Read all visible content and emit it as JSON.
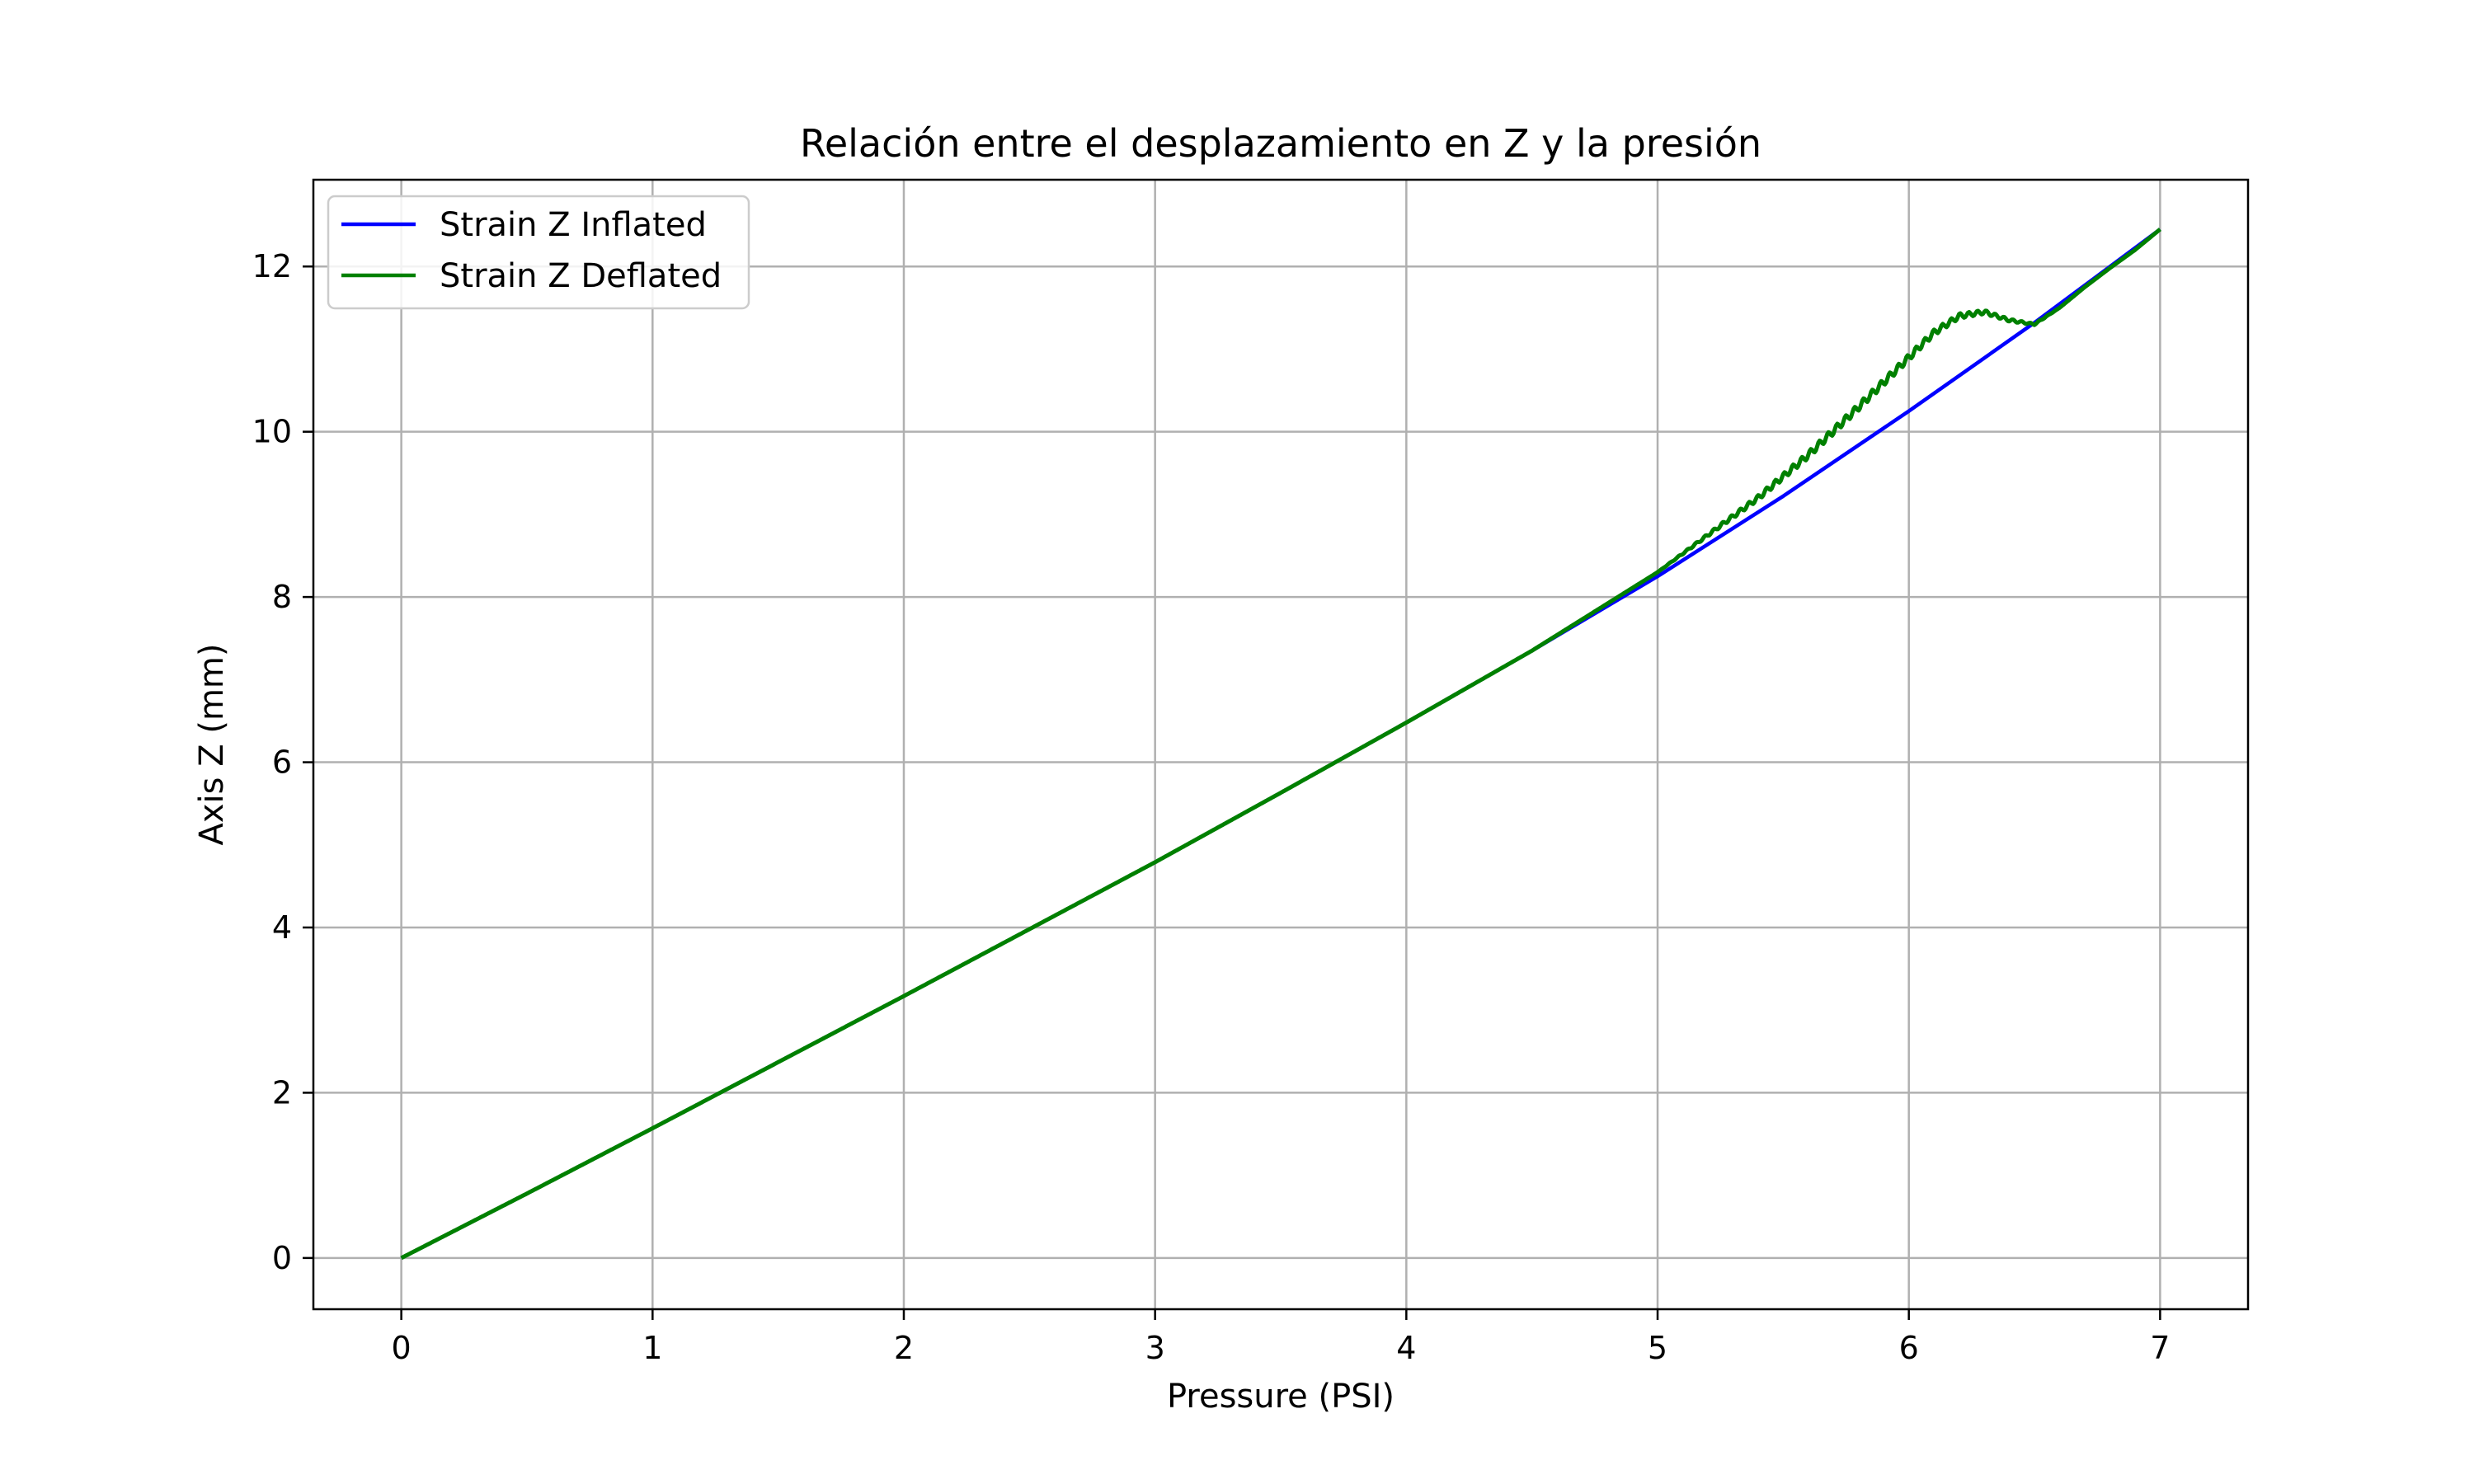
{
  "chart_data": {
    "type": "line",
    "title": "Relación entre el desplazamiento en Z y la presión",
    "xlabel": "Pressure (PSI)",
    "ylabel": "Axis Z (mm)",
    "xlim": [
      -0.35,
      7.35
    ],
    "ylim": [
      -0.62,
      13.05
    ],
    "xticks": [
      0,
      1,
      2,
      3,
      4,
      5,
      6,
      7
    ],
    "yticks": [
      0,
      2,
      4,
      6,
      8,
      10,
      12
    ],
    "xtick_labels": [
      "0",
      "1",
      "2",
      "3",
      "4",
      "5",
      "6",
      "7"
    ],
    "ytick_labels": [
      "0",
      "2",
      "4",
      "6",
      "8",
      "10",
      "12"
    ],
    "grid": true,
    "legend_position": "top-left",
    "series": [
      {
        "name": "Strain Z Inflated",
        "color": "#0000ff",
        "x": [
          0,
          0.5,
          1,
          1.5,
          2,
          2.5,
          3,
          3.5,
          4,
          4.5,
          5,
          5.5,
          6,
          6.5,
          7
        ],
        "y": [
          0,
          0.78,
          1.57,
          2.37,
          3.17,
          3.98,
          4.79,
          5.63,
          6.48,
          7.35,
          8.25,
          9.22,
          10.25,
          11.32,
          12.45
        ]
      },
      {
        "name": "Strain Z Deflated",
        "color": "#008000",
        "x": [
          0,
          0.5,
          1,
          1.5,
          2,
          2.5,
          3,
          3.5,
          4,
          4.5,
          4.8,
          5,
          5.2,
          5.4,
          5.6,
          5.8,
          5.9,
          6,
          6.1,
          6.2,
          6.3,
          6.4,
          6.5,
          6.6,
          6.7,
          6.8,
          6.9,
          7
        ],
        "y": [
          0,
          0.78,
          1.57,
          2.37,
          3.17,
          3.98,
          4.79,
          5.63,
          6.48,
          7.35,
          7.92,
          8.3,
          8.75,
          9.2,
          9.72,
          10.3,
          10.6,
          10.9,
          11.2,
          11.4,
          11.45,
          11.35,
          11.3,
          11.5,
          11.75,
          11.98,
          12.2,
          12.45
        ]
      }
    ]
  }
}
